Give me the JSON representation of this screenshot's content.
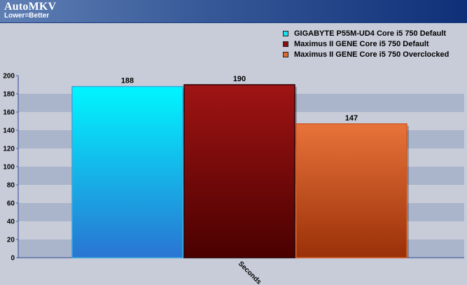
{
  "header": {
    "title": "AutoMKV",
    "subtitle": "Lower=Better"
  },
  "legend": [
    {
      "label": "GIGABYTE P55M-UD4 Core i5 750 Default",
      "color": "#18e0f0"
    },
    {
      "label": "Maximus II GENE Core i5 750 Default",
      "color": "#8c1010"
    },
    {
      "label": "Maximus II GENE Core i5 750 Overclocked",
      "color": "#e06a30"
    }
  ],
  "chart_data": {
    "type": "bar",
    "title": "AutoMKV",
    "subtitle": "Lower=Better",
    "categories": [
      "Seconds"
    ],
    "xlabel": "",
    "ylabel": "",
    "ylim": [
      0,
      200
    ],
    "yticks": [
      0,
      20,
      40,
      60,
      80,
      100,
      120,
      140,
      160,
      180,
      200
    ],
    "grid": "alternating horizontal bands",
    "legend_position": "top-right",
    "series": [
      {
        "name": "GIGABYTE P55M-UD4 Core i5 750 Default",
        "values": [
          188
        ],
        "color": "#18e0f0"
      },
      {
        "name": "Maximus II GENE Core i5 750 Default",
        "values": [
          190
        ],
        "color": "#8c1010"
      },
      {
        "name": "Maximus II GENE Core i5 750 Overclocked",
        "values": [
          147
        ],
        "color": "#e06a30"
      }
    ]
  }
}
